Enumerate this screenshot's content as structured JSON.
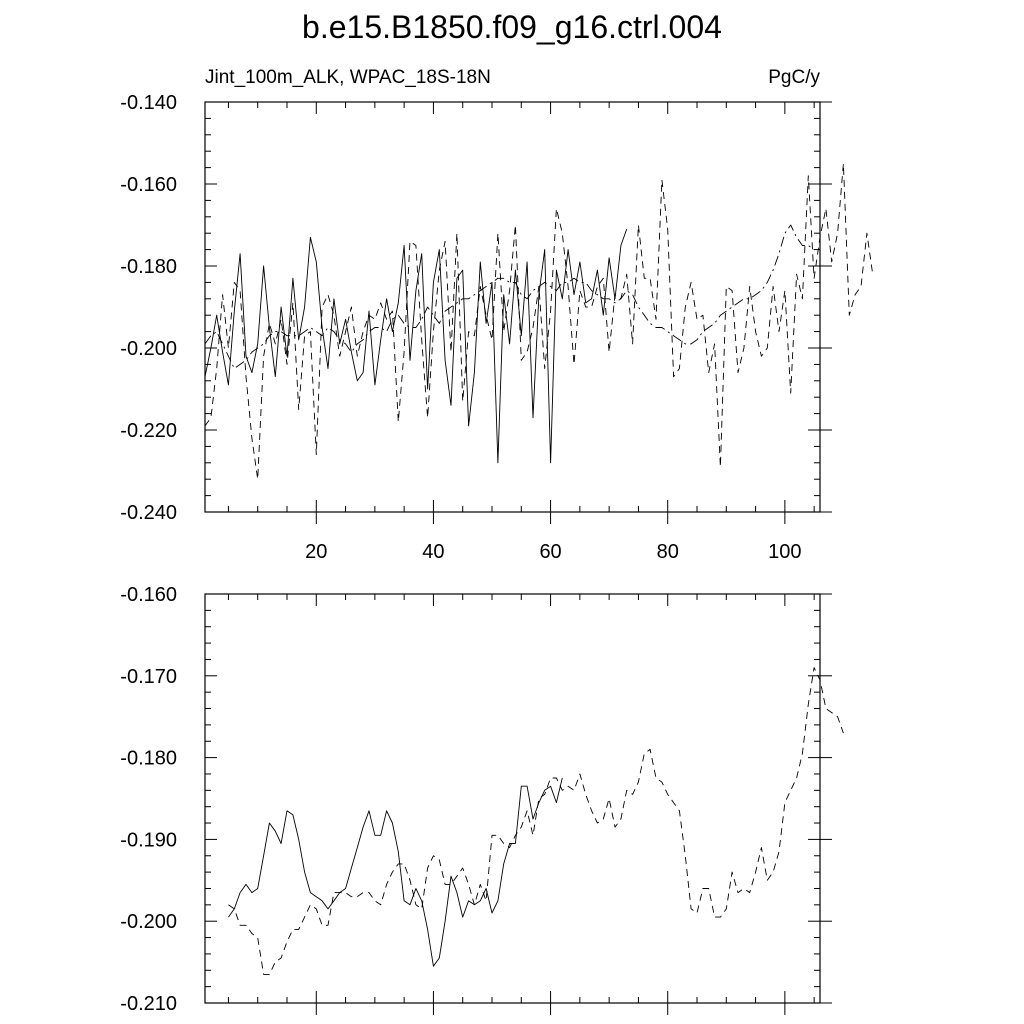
{
  "page": {
    "title": "b.e15.B1850.f09_g16.ctrl.004"
  },
  "chart_data": [
    {
      "type": "line",
      "left_label": "Jint_100m_ALK, WPAC_18S-18N",
      "right_label": "PgC/y",
      "xlim": [
        1,
        106
      ],
      "ylim": [
        -0.24,
        -0.14
      ],
      "x_ticks": [
        20,
        40,
        60,
        80,
        100
      ],
      "y_ticks": [
        -0.24,
        -0.22,
        -0.2,
        -0.18,
        -0.16,
        -0.14
      ],
      "y_tick_labels": [
        "-0.240",
        "-0.220",
        "-0.200",
        "-0.180",
        "-0.160",
        "-0.140"
      ],
      "series": [
        {
          "style": "solid",
          "x_start": 1,
          "values": [
            -0.207,
            -0.2,
            -0.192,
            -0.201,
            -0.209,
            -0.191,
            -0.177,
            -0.202,
            -0.206,
            -0.199,
            -0.18,
            -0.195,
            -0.207,
            -0.19,
            -0.202,
            -0.183,
            -0.198,
            -0.19,
            -0.173,
            -0.179,
            -0.195,
            -0.205,
            -0.188,
            -0.199,
            -0.193,
            -0.201,
            -0.208,
            -0.206,
            -0.191,
            -0.209,
            -0.198,
            -0.188,
            -0.196,
            -0.189,
            -0.175,
            -0.203,
            -0.186,
            -0.177,
            -0.21,
            -0.184,
            -0.176,
            -0.203,
            -0.214,
            -0.183,
            -0.181,
            -0.219,
            -0.206,
            -0.179,
            -0.194,
            -0.184,
            -0.228,
            -0.187,
            -0.199,
            -0.181,
            -0.197,
            -0.179,
            -0.217,
            -0.187,
            -0.176,
            -0.228,
            -0.181,
            -0.188,
            -0.176,
            -0.187,
            -0.179,
            -0.189,
            -0.188,
            -0.181,
            -0.192,
            -0.178,
            -0.188,
            -0.175,
            -0.171
          ]
        },
        {
          "style": "dashed",
          "x_start": 1,
          "values": [
            -0.219,
            -0.217,
            -0.205,
            -0.187,
            -0.2,
            -0.184,
            -0.186,
            -0.207,
            -0.222,
            -0.232,
            -0.202,
            -0.194,
            -0.199,
            -0.193,
            -0.204,
            -0.189,
            -0.215,
            -0.197,
            -0.196,
            -0.226,
            -0.19,
            -0.187,
            -0.192,
            -0.202,
            -0.196,
            -0.19,
            -0.202,
            -0.196,
            -0.192,
            -0.193,
            -0.189,
            -0.193,
            -0.191,
            -0.218,
            -0.201,
            -0.174,
            -0.175,
            -0.198,
            -0.217,
            -0.196,
            -0.181,
            -0.174,
            -0.201,
            -0.172,
            -0.213,
            -0.196,
            -0.197,
            -0.185,
            -0.192,
            -0.198,
            -0.172,
            -0.196,
            -0.186,
            -0.17,
            -0.203,
            -0.201,
            -0.195,
            -0.185,
            -0.205,
            -0.191,
            -0.166,
            -0.172,
            -0.185,
            -0.204,
            -0.186,
            -0.19,
            -0.19,
            -0.185,
            -0.183,
            -0.201,
            -0.187,
            -0.188,
            -0.182,
            -0.199,
            -0.17,
            -0.183,
            -0.183,
            -0.193,
            -0.159,
            -0.171,
            -0.207,
            -0.205,
            -0.19,
            -0.184,
            -0.193,
            -0.192,
            -0.206,
            -0.199,
            -0.229,
            -0.185,
            -0.186,
            -0.206,
            -0.2,
            -0.185,
            -0.196,
            -0.202,
            -0.2,
            -0.185,
            -0.196,
            -0.186,
            -0.211,
            -0.182,
            -0.188,
            -0.158,
            -0.183,
            -0.173,
            -0.166,
            -0.179,
            -0.172,
            -0.155,
            -0.192,
            -0.187,
            -0.185,
            -0.172,
            -0.182
          ]
        },
        {
          "style": "dash-dot",
          "x_start": 1,
          "values": [
            -0.199,
            -0.197,
            -0.196,
            -0.199,
            -0.202,
            -0.205,
            -0.204,
            -0.203,
            -0.201,
            -0.2,
            -0.199,
            -0.197,
            -0.196,
            -0.196,
            -0.197,
            -0.197,
            -0.197,
            -0.196,
            -0.195,
            -0.196,
            -0.197,
            -0.195,
            -0.196,
            -0.198,
            -0.199,
            -0.201,
            -0.199,
            -0.198,
            -0.196,
            -0.195,
            -0.195,
            -0.196,
            -0.193,
            -0.192,
            -0.194,
            -0.195,
            -0.195,
            -0.193,
            -0.19,
            -0.192,
            -0.194,
            -0.191,
            -0.19,
            -0.189,
            -0.188,
            -0.188,
            -0.187,
            -0.186,
            -0.185,
            -0.184,
            -0.183,
            -0.183,
            -0.184,
            -0.184,
            -0.187,
            -0.188,
            -0.186,
            -0.185,
            -0.184,
            -0.185,
            -0.186,
            -0.184,
            -0.184,
            -0.183,
            -0.184,
            -0.184,
            -0.186,
            -0.187,
            -0.188,
            -0.188,
            -0.189,
            -0.188,
            -0.186,
            -0.187,
            -0.19,
            -0.192,
            -0.194,
            -0.195,
            -0.195,
            -0.196,
            -0.197,
            -0.198,
            -0.199,
            -0.199,
            -0.198,
            -0.196,
            -0.195,
            -0.194,
            -0.192,
            -0.191,
            -0.19,
            -0.189,
            -0.188,
            -0.188,
            -0.187,
            -0.186,
            -0.184,
            -0.181,
            -0.177,
            -0.172,
            -0.17,
            -0.173,
            -0.175,
            -0.175,
            -0.176
          ]
        }
      ]
    },
    {
      "type": "line",
      "xlim": [
        1,
        106
      ],
      "ylim": [
        -0.21,
        -0.16
      ],
      "x_ticks": [
        20,
        40,
        60,
        80,
        100
      ],
      "y_ticks": [
        -0.21,
        -0.2,
        -0.19,
        -0.18,
        -0.17,
        -0.16
      ],
      "y_tick_labels": [
        "-0.210",
        "-0.200",
        "-0.190",
        "-0.180",
        "-0.170",
        "-0.160"
      ],
      "series": [
        {
          "style": "solid",
          "x_start": 5,
          "values": [
            -0.1995,
            -0.1985,
            -0.1965,
            -0.1955,
            -0.1965,
            -0.196,
            -0.192,
            -0.188,
            -0.189,
            -0.1905,
            -0.1865,
            -0.187,
            -0.19,
            -0.194,
            -0.1965,
            -0.197,
            -0.1975,
            -0.1985,
            -0.1975,
            -0.1965,
            -0.196,
            -0.1935,
            -0.191,
            -0.1885,
            -0.1865,
            -0.1895,
            -0.1895,
            -0.1865,
            -0.188,
            -0.1915,
            -0.1975,
            -0.198,
            -0.196,
            -0.1975,
            -0.201,
            -0.2055,
            -0.2045,
            -0.2,
            -0.1945,
            -0.1965,
            -0.1995,
            -0.1975,
            -0.198,
            -0.1975,
            -0.196,
            -0.199,
            -0.1975,
            -0.193,
            -0.1905,
            -0.1905,
            -0.1835,
            -0.1835,
            -0.1875,
            -0.1855,
            -0.184,
            -0.1835,
            -0.1855,
            -0.1825
          ]
        },
        {
          "style": "dashed",
          "x_start": 5,
          "values": [
            -0.198,
            -0.1985,
            -0.2005,
            -0.2005,
            -0.2015,
            -0.202,
            -0.2065,
            -0.2065,
            -0.205,
            -0.2045,
            -0.2025,
            -0.201,
            -0.201,
            -0.1995,
            -0.198,
            -0.1985,
            -0.2005,
            -0.2005,
            -0.1965,
            -0.1965,
            -0.1965,
            -0.197,
            -0.197,
            -0.1965,
            -0.1965,
            -0.1975,
            -0.198,
            -0.1955,
            -0.194,
            -0.193,
            -0.193,
            -0.195,
            -0.198,
            -0.1985,
            -0.1935,
            -0.192,
            -0.1925,
            -0.1955,
            -0.1955,
            -0.1945,
            -0.1935,
            -0.1955,
            -0.198,
            -0.1955,
            -0.1975,
            -0.1895,
            -0.1895,
            -0.1905,
            -0.191,
            -0.1895,
            -0.1885,
            -0.1865,
            -0.1895,
            -0.185,
            -0.1845,
            -0.1825,
            -0.1825,
            -0.184,
            -0.1835,
            -0.184,
            -0.182,
            -0.1845,
            -0.1865,
            -0.188,
            -0.1875,
            -0.185,
            -0.1885,
            -0.1875,
            -0.184,
            -0.1845,
            -0.183,
            -0.1795,
            -0.179,
            -0.1825,
            -0.183,
            -0.1845,
            -0.1855,
            -0.1865,
            -0.192,
            -0.1985,
            -0.199,
            -0.196,
            -0.196,
            -0.1995,
            -0.1995,
            -0.1985,
            -0.194,
            -0.1965,
            -0.196,
            -0.1965,
            -0.194,
            -0.191,
            -0.195,
            -0.194,
            -0.1915,
            -0.1855,
            -0.184,
            -0.1825,
            -0.1795,
            -0.1735,
            -0.169,
            -0.1705,
            -0.174,
            -0.1745,
            -0.175,
            -0.177
          ]
        }
      ]
    }
  ]
}
